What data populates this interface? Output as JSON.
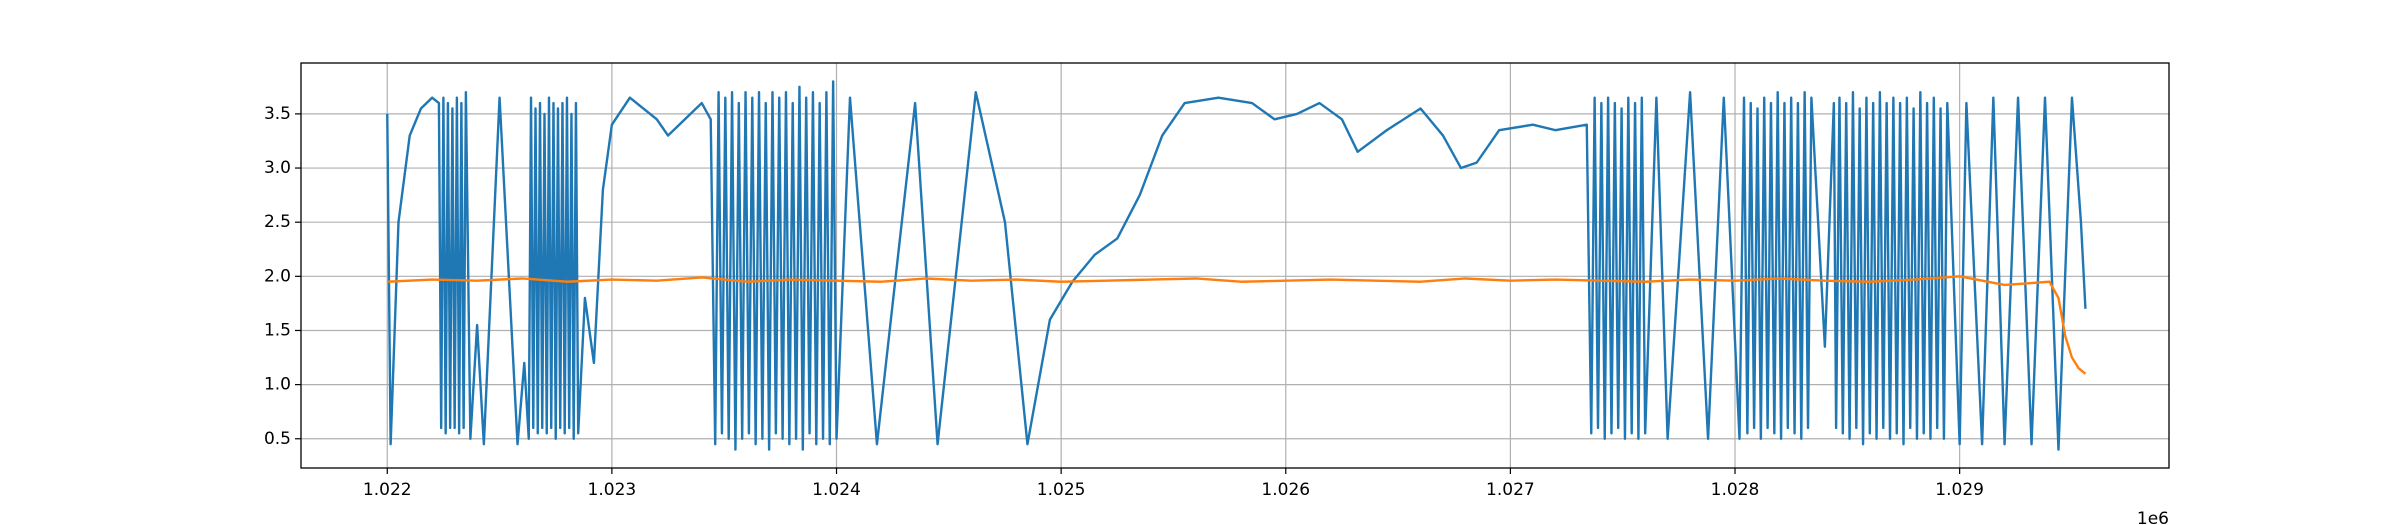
{
  "chart_data": {
    "type": "line",
    "x_offset_label": "1e6",
    "xlim": [
      1021616,
      1029932
    ],
    "ylim": [
      0.23,
      3.97
    ],
    "xticks": [
      {
        "value": 1022000,
        "label": "1.022"
      },
      {
        "value": 1023000,
        "label": "1.023"
      },
      {
        "value": 1024000,
        "label": "1.024"
      },
      {
        "value": 1025000,
        "label": "1.025"
      },
      {
        "value": 1026000,
        "label": "1.026"
      },
      {
        "value": 1027000,
        "label": "1.027"
      },
      {
        "value": 1028000,
        "label": "1.028"
      },
      {
        "value": 1029000,
        "label": "1.029"
      }
    ],
    "yticks": [
      0.5,
      {
        "value": 1,
        "label": "1.0"
      },
      1.5,
      {
        "value": 2,
        "label": "2.0"
      },
      2.5,
      {
        "value": 3,
        "label": "3.0"
      },
      3.5
    ],
    "grid": true,
    "series": [
      {
        "color": "#1f77b4",
        "x": [
          1022000,
          1022015,
          1022050,
          1022100,
          1022150,
          1022200,
          1022230,
          1022240,
          1022250,
          1022260,
          1022270,
          1022280,
          1022290,
          1022300,
          1022310,
          1022320,
          1022330,
          1022340,
          1022350,
          1022370,
          1022400,
          1022430,
          1022500,
          1022580,
          1022610,
          1022630,
          1022640,
          1022650,
          1022660,
          1022670,
          1022680,
          1022690,
          1022700,
          1022710,
          1022720,
          1022730,
          1022740,
          1022750,
          1022760,
          1022770,
          1022780,
          1022790,
          1022800,
          1022810,
          1022820,
          1022830,
          1022840,
          1022850,
          1022880,
          1022920,
          1022960,
          1023000,
          1023080,
          1023200,
          1023250,
          1023350,
          1023400,
          1023440,
          1023460,
          1023475,
          1023490,
          1023505,
          1023520,
          1023535,
          1023550,
          1023565,
          1023580,
          1023595,
          1023610,
          1023625,
          1023640,
          1023655,
          1023670,
          1023685,
          1023700,
          1023715,
          1023730,
          1023745,
          1023760,
          1023775,
          1023790,
          1023805,
          1023820,
          1023835,
          1023850,
          1023865,
          1023880,
          1023895,
          1023910,
          1023925,
          1023940,
          1023955,
          1023970,
          1023985,
          1024000,
          1024060,
          1024180,
          1024350,
          1024450,
          1024620,
          1024750,
          1024850,
          1024950,
          1025050,
          1025150,
          1025250,
          1025350,
          1025450,
          1025550,
          1025700,
          1025850,
          1025950,
          1026050,
          1026150,
          1026250,
          1026320,
          1026450,
          1026600,
          1026700,
          1026780,
          1026850,
          1026950,
          1027100,
          1027200,
          1027340,
          1027360,
          1027375,
          1027390,
          1027405,
          1027420,
          1027435,
          1027450,
          1027465,
          1027480,
          1027495,
          1027510,
          1027525,
          1027540,
          1027555,
          1027570,
          1027585,
          1027600,
          1027650,
          1027700,
          1027800,
          1027880,
          1027950,
          1028020,
          1028040,
          1028055,
          1028070,
          1028085,
          1028100,
          1028115,
          1028130,
          1028145,
          1028160,
          1028175,
          1028190,
          1028205,
          1028220,
          1028235,
          1028250,
          1028265,
          1028280,
          1028295,
          1028310,
          1028325,
          1028340,
          1028400,
          1028440,
          1028450,
          1028465,
          1028480,
          1028495,
          1028510,
          1028525,
          1028540,
          1028555,
          1028570,
          1028585,
          1028600,
          1028615,
          1028630,
          1028645,
          1028660,
          1028675,
          1028690,
          1028705,
          1028720,
          1028735,
          1028750,
          1028765,
          1028780,
          1028795,
          1028810,
          1028825,
          1028840,
          1028855,
          1028870,
          1028885,
          1028900,
          1028915,
          1028930,
          1028945,
          1029000,
          1029030,
          1029100,
          1029150,
          1029200,
          1029260,
          1029320,
          1029380,
          1029440,
          1029500,
          1029540,
          1029560
        ],
        "values": [
          3.5,
          0.45,
          2.5,
          3.3,
          3.55,
          3.65,
          3.6,
          0.6,
          3.65,
          0.55,
          3.6,
          0.6,
          3.55,
          0.6,
          3.65,
          0.55,
          3.6,
          0.6,
          3.7,
          0.5,
          1.55,
          0.45,
          3.65,
          0.45,
          1.2,
          0.5,
          3.65,
          0.6,
          3.55,
          0.55,
          3.6,
          0.6,
          3.5,
          0.55,
          3.65,
          0.6,
          3.6,
          0.5,
          3.55,
          0.6,
          3.6,
          0.55,
          3.65,
          0.6,
          3.5,
          0.5,
          3.6,
          0.55,
          1.8,
          1.2,
          2.8,
          3.4,
          3.65,
          3.45,
          3.3,
          3.5,
          3.6,
          3.45,
          0.45,
          3.7,
          0.55,
          3.65,
          0.5,
          3.7,
          0.4,
          3.6,
          0.5,
          3.7,
          0.55,
          3.65,
          0.45,
          3.7,
          0.5,
          3.6,
          0.4,
          3.7,
          0.55,
          3.65,
          0.5,
          3.7,
          0.45,
          3.6,
          0.5,
          3.75,
          0.4,
          3.65,
          0.55,
          3.7,
          0.45,
          3.6,
          0.5,
          3.7,
          0.45,
          3.8,
          0.5,
          3.65,
          0.45,
          3.6,
          0.45,
          3.7,
          2.5,
          0.45,
          1.6,
          1.95,
          2.2,
          2.35,
          2.75,
          3.3,
          3.6,
          3.65,
          3.6,
          3.45,
          3.5,
          3.6,
          3.45,
          3.15,
          3.35,
          3.55,
          3.3,
          3.0,
          3.05,
          3.35,
          3.4,
          3.35,
          3.4,
          0.55,
          3.65,
          0.6,
          3.6,
          0.5,
          3.65,
          0.55,
          3.6,
          0.6,
          3.55,
          0.5,
          3.65,
          0.55,
          3.6,
          0.5,
          3.65,
          0.55,
          3.65,
          0.5,
          3.7,
          0.5,
          3.65,
          0.5,
          3.65,
          0.55,
          3.6,
          0.6,
          3.55,
          0.5,
          3.65,
          0.6,
          3.6,
          0.55,
          3.7,
          0.5,
          3.6,
          0.6,
          3.65,
          0.55,
          3.6,
          0.5,
          3.7,
          0.6,
          3.65,
          1.35,
          3.6,
          0.6,
          3.65,
          0.55,
          3.6,
          0.5,
          3.7,
          0.6,
          3.55,
          0.45,
          3.65,
          0.55,
          3.6,
          0.5,
          3.7,
          0.6,
          3.6,
          0.5,
          3.65,
          0.55,
          3.6,
          0.45,
          3.65,
          0.6,
          3.55,
          0.5,
          3.7,
          0.55,
          3.6,
          0.5,
          3.65,
          0.6,
          3.55,
          0.5,
          3.6,
          0.45,
          3.6,
          0.45,
          3.65,
          0.45,
          3.65,
          0.45,
          3.65,
          0.4,
          3.65,
          2.5,
          1.7
        ]
      },
      {
        "color": "#ff7f0e",
        "x": [
          1022000,
          1022200,
          1022400,
          1022600,
          1022800,
          1023000,
          1023200,
          1023400,
          1023600,
          1023800,
          1024000,
          1024200,
          1024400,
          1024600,
          1024800,
          1025000,
          1025200,
          1025400,
          1025600,
          1025800,
          1026000,
          1026200,
          1026400,
          1026600,
          1026800,
          1027000,
          1027200,
          1027400,
          1027600,
          1027800,
          1028000,
          1028200,
          1028400,
          1028600,
          1028800,
          1029000,
          1029200,
          1029400,
          1029440,
          1029470,
          1029500,
          1029530,
          1029560
        ],
        "values": [
          1.95,
          1.97,
          1.96,
          1.98,
          1.95,
          1.97,
          1.96,
          1.99,
          1.95,
          1.97,
          1.96,
          1.95,
          1.98,
          1.96,
          1.97,
          1.95,
          1.96,
          1.97,
          1.98,
          1.95,
          1.96,
          1.97,
          1.96,
          1.95,
          1.98,
          1.96,
          1.97,
          1.96,
          1.95,
          1.97,
          1.96,
          1.98,
          1.96,
          1.95,
          1.97,
          2.0,
          1.92,
          1.95,
          1.8,
          1.45,
          1.25,
          1.15,
          1.1
        ]
      }
    ]
  }
}
